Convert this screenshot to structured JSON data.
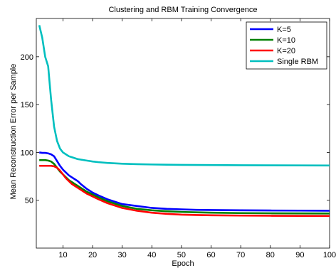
{
  "chart_data": {
    "type": "line",
    "title": "Clustering and RBM Training Convergence",
    "xlabel": "Epoch",
    "ylabel": "Mean Reconstruction Error per Sample",
    "xlim": [
      1,
      100
    ],
    "ylim": [
      0,
      240
    ],
    "xticks": [
      10,
      20,
      30,
      40,
      50,
      60,
      70,
      80,
      90,
      100
    ],
    "yticks": [
      50,
      100,
      150,
      200
    ],
    "grid": false,
    "legend": "top-right",
    "x": [
      2,
      3,
      4,
      5,
      6,
      7,
      8,
      9,
      10,
      11,
      12,
      13,
      14,
      15,
      16,
      18,
      20,
      22,
      25,
      30,
      35,
      40,
      45,
      50,
      55,
      60,
      70,
      80,
      90,
      100
    ],
    "series": [
      {
        "name": "K=5",
        "color": "#0000ff",
        "values": [
          100,
          99.5,
          99.5,
          99,
          98,
          96,
          91,
          86,
          82,
          79,
          76,
          74,
          72,
          70,
          67,
          62,
          58,
          55,
          51,
          46,
          44,
          42,
          41,
          40.5,
          40,
          39.8,
          39.5,
          39.3,
          39.2,
          39
        ]
      },
      {
        "name": "K=10",
        "color": "#008000",
        "values": [
          92,
          92,
          92,
          91.5,
          90.5,
          88,
          84,
          80,
          77,
          74,
          71,
          69,
          67,
          65,
          63,
          59,
          56,
          53,
          49,
          44,
          41,
          39.5,
          38.5,
          37.8,
          37.4,
          37,
          36.6,
          36.4,
          36.3,
          36.2
        ]
      },
      {
        "name": "K=20",
        "color": "#ff0000",
        "values": [
          86,
          86,
          86,
          86,
          86,
          85.5,
          84,
          81,
          77,
          73,
          70,
          67,
          65,
          63,
          61,
          57,
          54,
          51,
          47,
          42,
          39,
          37,
          35.8,
          35,
          34.6,
          34.3,
          34,
          33.8,
          33.7,
          33.6
        ]
      },
      {
        "name": "Single RBM",
        "color": "#00bfbf",
        "values": [
          233,
          220,
          200,
          190,
          155,
          127,
          112,
          104,
          100,
          98,
          96,
          95,
          94,
          93,
          92.5,
          91.5,
          90.5,
          89.8,
          89,
          88.2,
          87.7,
          87.4,
          87.2,
          87,
          86.9,
          86.8,
          86.6,
          86.5,
          86.4,
          86.3
        ]
      }
    ]
  }
}
